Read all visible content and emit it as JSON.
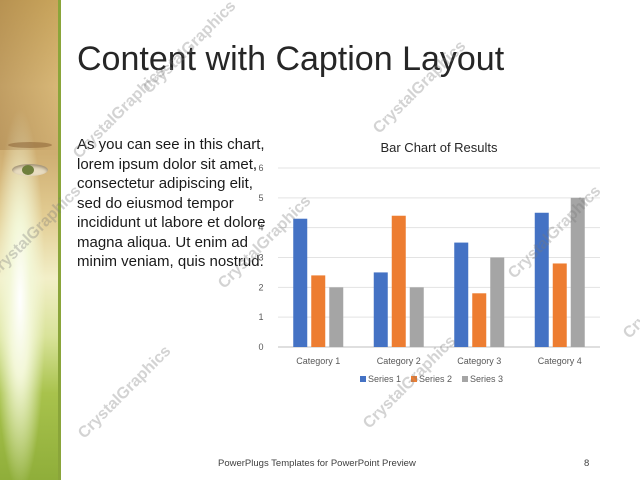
{
  "slide": {
    "title": "Content with Caption Layout",
    "body": "As you can see in this chart, lorem ipsum dolor sit amet, consectetur adipiscing elit, sed do eiusmod tempor incididunt ut labore et dolore magna aliqua. Ut enim ad minim veniam, quis nostrud.",
    "footer": "PowerPlugs Templates for PowerPoint Preview",
    "page_number": "8"
  },
  "watermark": "CrystalGraphics",
  "colors": {
    "series1": "#4472c4",
    "series2": "#ed7d31",
    "series3": "#a5a5a5",
    "accent_bar": "#8aa53a"
  },
  "chart_data": {
    "type": "bar",
    "title": "Bar Chart of Results",
    "categories": [
      "Category 1",
      "Category 2",
      "Category 3",
      "Category 4"
    ],
    "series": [
      {
        "name": "Series 1",
        "values": [
          4.3,
          2.5,
          3.5,
          4.5
        ]
      },
      {
        "name": "Series 2",
        "values": [
          2.4,
          4.4,
          1.8,
          2.8
        ]
      },
      {
        "name": "Series 3",
        "values": [
          2,
          2,
          3,
          5
        ]
      }
    ],
    "ylim": [
      0,
      6
    ],
    "yticks": [
      "0",
      "1",
      "2",
      "3",
      "4",
      "5",
      "6"
    ],
    "grid": true,
    "legend": "bottom"
  }
}
